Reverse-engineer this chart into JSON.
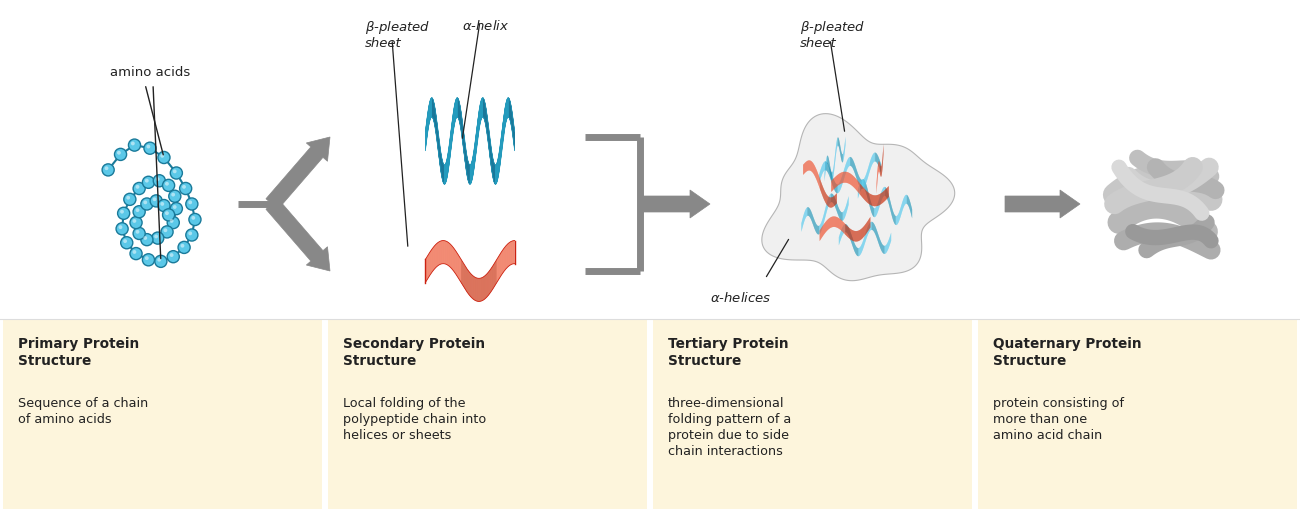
{
  "background_color": "#ffffff",
  "panel_bg_color": "#fdf5dc",
  "sections": [
    {
      "title": "Primary Protein\nStructure",
      "description": "Sequence of a chain\nof amino acids"
    },
    {
      "title": "Secondary Protein\nStructure",
      "description": "Local folding of the\npolypeptide chain into\nhelices or sheets"
    },
    {
      "title": "Tertiary Protein\nStructure",
      "description": "three-dimensional\nfolding pattern of a\nprotein due to side\nchain interactions"
    },
    {
      "title": "Quaternary Protein\nStructure",
      "description": "protein consisting of\nmore than one\namino acid chain"
    }
  ],
  "amino_acid_color": "#5bc8e8",
  "amino_acid_outline": "#1a7a9a",
  "helix_color_light": "#55ccee",
  "helix_color_dark": "#2299bb",
  "sheet_color_light": "#ee5533",
  "sheet_color_dark": "#cc2211",
  "arrow_color": "#888888",
  "label_color": "#222222",
  "quaternary_color_light": "#cccccc",
  "quaternary_color_dark": "#888888"
}
